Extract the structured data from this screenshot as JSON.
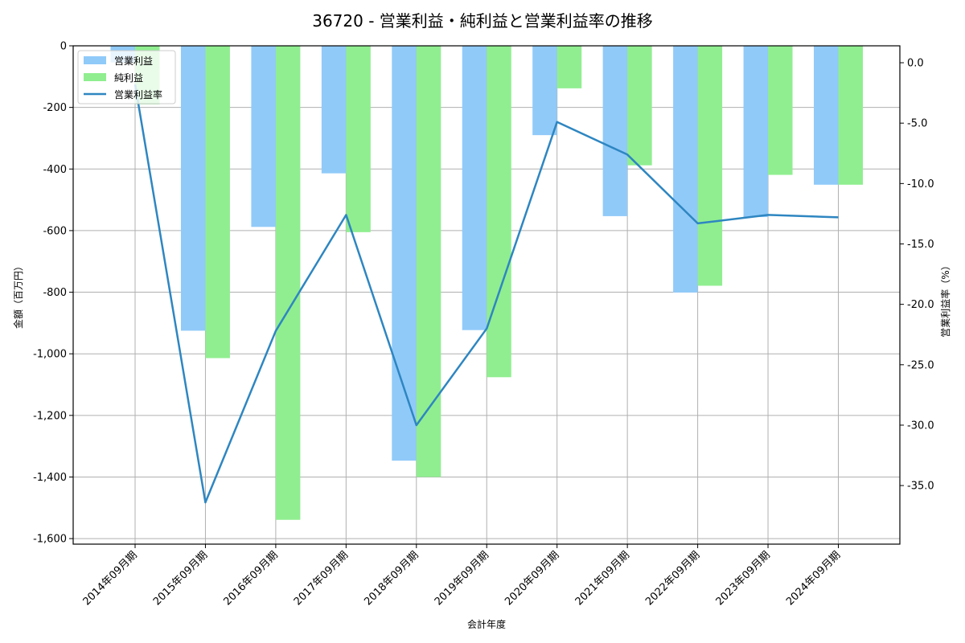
{
  "chart_data": {
    "type": "bar",
    "title": "36720 - 営業利益・純利益と営業利益率の推移",
    "xlabel": "会計年度",
    "ylabel": "金額（百万円）",
    "y2label": "営業利益率（%）",
    "categories": [
      "2014年09月期",
      "2015年09月期",
      "2016年09月期",
      "2017年09月期",
      "2018年09月期",
      "2019年09月期",
      "2020年09月期",
      "2021年09月期",
      "2022年09月期",
      "2023年09月期",
      "2024年09月期"
    ],
    "series": [
      {
        "name": "営業利益",
        "type": "bar",
        "axis": "left",
        "color": "#90caf9",
        "values": [
          -54,
          -925,
          -588,
          -414,
          -1347,
          -923,
          -290,
          -553,
          -801,
          -556,
          -451
        ]
      },
      {
        "name": "純利益",
        "type": "bar",
        "axis": "left",
        "color": "#90ee90",
        "values": [
          -190,
          -1014,
          -1539,
          -605,
          -1400,
          -1076,
          -138,
          -388,
          -779,
          -419,
          -451
        ]
      },
      {
        "name": "営業利益率",
        "type": "line",
        "axis": "right",
        "color": "#2e86c1",
        "values": [
          -1.8,
          -36.4,
          -22.2,
          -12.6,
          -30.0,
          -22.0,
          -4.9,
          -7.6,
          -13.3,
          -12.6,
          -12.8
        ]
      }
    ],
    "ylim": [
      -1618,
      0
    ],
    "y2lim": [
      -39.85,
      1.4
    ],
    "yticks": [
      0,
      -200,
      -400,
      -600,
      -800,
      -1000,
      -1200,
      -1400,
      -1600
    ],
    "ytick_labels": [
      "0",
      "-200",
      "-400",
      "-600",
      "-800",
      "-1,000",
      "-1,200",
      "-1,400",
      "-1,600"
    ],
    "y2ticks": [
      0,
      -5,
      -10,
      -15,
      -20,
      -25,
      -30,
      -35
    ],
    "y2tick_labels": [
      "0.0",
      "-5.0",
      "-10.0",
      "-15.0",
      "-20.0",
      "-25.0",
      "-30.0",
      "-35.0"
    ],
    "grid": true,
    "legend_position": "upper left"
  }
}
